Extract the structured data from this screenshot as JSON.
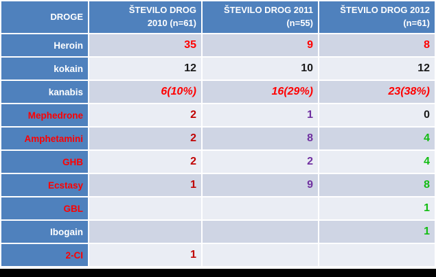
{
  "palette": {
    "header_bg": "#4F81BD",
    "row_band_dark": "#CFD5E4",
    "row_band_light": "#EAEDF4",
    "bright_red": "#FF0000",
    "dark_red": "#C00000",
    "purple": "#7030A0",
    "green": "#12BC12",
    "black": "#1A1A1A",
    "white_text": "#FFFFFF",
    "bottom_bar": "#000000"
  },
  "table": {
    "header": {
      "col0": "DROGE",
      "col1_line1": "ŠTEVILO DROG",
      "col1_line2": "2010 (n=61)",
      "col2_line1": "ŠTEVILO DROG 2011",
      "col2_line2": "(n=55)",
      "col3_line1": "ŠTEVILO DROG 2012",
      "col3_line2": "(n=61)"
    },
    "rows": [
      {
        "drug": "Heroin",
        "drug_color": "white",
        "values": [
          {
            "text": "35",
            "color": "red"
          },
          {
            "text": "9",
            "color": "red"
          },
          {
            "text": "8",
            "color": "red"
          }
        ]
      },
      {
        "drug": "kokain",
        "drug_color": "white",
        "values": [
          {
            "text": "12",
            "color": "black"
          },
          {
            "text": "10",
            "color": "black"
          },
          {
            "text": "12",
            "color": "black"
          }
        ]
      },
      {
        "drug": "kanabis",
        "drug_color": "white",
        "values": [
          {
            "text": "6(10%)",
            "color": "red-italic"
          },
          {
            "text": "16(29%)",
            "color": "red-italic"
          },
          {
            "text": "23(38%)",
            "color": "red-italic"
          }
        ]
      },
      {
        "drug": "Mephedrone",
        "drug_color": "red",
        "values": [
          {
            "text": "2",
            "color": "dark-red"
          },
          {
            "text": "1",
            "color": "purple"
          },
          {
            "text": "0",
            "color": "black"
          }
        ]
      },
      {
        "drug": "Amphetamini",
        "drug_color": "red",
        "values": [
          {
            "text": "2",
            "color": "dark-red"
          },
          {
            "text": "8",
            "color": "purple"
          },
          {
            "text": "4",
            "color": "green"
          }
        ]
      },
      {
        "drug": "GHB",
        "drug_color": "red",
        "values": [
          {
            "text": "2",
            "color": "dark-red"
          },
          {
            "text": "2",
            "color": "purple"
          },
          {
            "text": "4",
            "color": "green"
          }
        ]
      },
      {
        "drug": "Ecstasy",
        "drug_color": "red",
        "values": [
          {
            "text": "1",
            "color": "dark-red"
          },
          {
            "text": "9",
            "color": "purple"
          },
          {
            "text": "8",
            "color": "green"
          }
        ]
      },
      {
        "drug": "GBL",
        "drug_color": "red",
        "values": [
          {
            "text": "",
            "color": ""
          },
          {
            "text": "",
            "color": ""
          },
          {
            "text": "1",
            "color": "green"
          }
        ]
      },
      {
        "drug": "Ibogain",
        "drug_color": "white",
        "values": [
          {
            "text": "",
            "color": ""
          },
          {
            "text": "",
            "color": ""
          },
          {
            "text": "1",
            "color": "green"
          }
        ]
      },
      {
        "drug": "2-CI",
        "drug_color": "red",
        "values": [
          {
            "text": "1",
            "color": "dark-red"
          },
          {
            "text": "",
            "color": ""
          },
          {
            "text": "",
            "color": ""
          }
        ]
      }
    ]
  },
  "chart_data": {
    "type": "table",
    "title": "",
    "columns": [
      "DROGE",
      "ŠTEVILO DROG 2010 (n=61)",
      "ŠTEVILO DROG 2011 (n=55)",
      "ŠTEVILO DROG 2012 (n=61)"
    ],
    "rows": [
      [
        "Heroin",
        "35",
        "9",
        "8"
      ],
      [
        "kokain",
        "12",
        "10",
        "12"
      ],
      [
        "kanabis",
        "6(10%)",
        "16(29%)",
        "23(38%)"
      ],
      [
        "Mephedrone",
        "2",
        "1",
        "0"
      ],
      [
        "Amphetamini",
        "2",
        "8",
        "4"
      ],
      [
        "GHB",
        "2",
        "2",
        "4"
      ],
      [
        "Ecstasy",
        "1",
        "9",
        "8"
      ],
      [
        "GBL",
        "",
        "",
        "1"
      ],
      [
        "Ibogain",
        "",
        "",
        "1"
      ],
      [
        "2-CI",
        "1",
        "",
        ""
      ]
    ]
  }
}
